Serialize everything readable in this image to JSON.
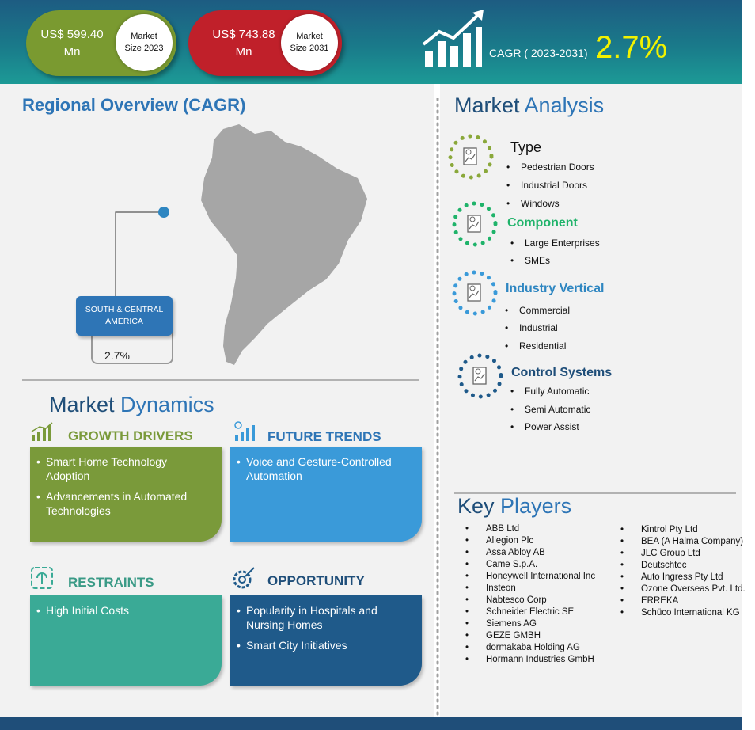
{
  "header": {
    "market_2023": {
      "value": "US$ 599.40\nMn",
      "value_line1": "US$ 599.40",
      "value_line2": "Mn",
      "label_line1": "Market",
      "label_line2": "Size 2023",
      "color": "#7a9a30"
    },
    "market_2031": {
      "value_line1": "US$ 743.88",
      "value_line2": "Mn",
      "label_line1": "Market",
      "label_line2": "Size 2031",
      "color": "#c0202a"
    },
    "cagr_label": "CAGR ( 2023-2031)",
    "cagr_value": "2.7%",
    "cagr_color": "#f2f200"
  },
  "regional": {
    "title": "Regional Overview (CAGR)",
    "region_line1": "SOUTH & CENTRAL",
    "region_line2": "AMERICA",
    "region_cagr": "2.7%",
    "map_color": "#a6a6a6",
    "box_color": "#2e75b6"
  },
  "dynamics": {
    "title_bold": "Market",
    "title_rest": "Dynamics",
    "growth": {
      "title": "GROWTH DRIVERS",
      "color": "#7a9a3a",
      "items": [
        "Smart Home Technology Adoption",
        "Advancements in Automated Technologies"
      ]
    },
    "trends": {
      "title": "FUTURE TRENDS",
      "color": "#3a9ad9",
      "items": [
        "Voice and Gesture-Controlled Automation"
      ]
    },
    "restraints": {
      "title": "RESTRAINTS",
      "color": "#3aaa96",
      "items": [
        "High Initial Costs"
      ]
    },
    "opportunity": {
      "title": "OPPORTUNITY",
      "color": "#1f5a8a",
      "items": [
        "Popularity in Hospitals and Nursing Homes",
        "Smart City Initiatives"
      ]
    }
  },
  "analysis": {
    "title_bold": "Market",
    "title_rest": "Analysis",
    "segments": [
      {
        "title": "Type",
        "color": "#111111",
        "dot_color": "#8aa83a",
        "items": [
          "Pedestrian Doors",
          "Industrial Doors",
          "Windows"
        ]
      },
      {
        "title": "Component",
        "color": "#1fb36a",
        "dot_color": "#1fb36a",
        "items": [
          "Large Enterprises",
          "SMEs"
        ]
      },
      {
        "title": "Industry Vertical",
        "color": "#2e86c1",
        "dot_color": "#3a9ad9",
        "items": [
          "Commercial",
          "Industrial",
          "Residential"
        ]
      },
      {
        "title": "Control Systems",
        "color": "#1f4e79",
        "dot_color": "#1f5a8a",
        "items": [
          "Fully Automatic",
          "Semi Automatic",
          "Power Assist"
        ]
      }
    ]
  },
  "key_players": {
    "title_bold": "Key",
    "title_rest": "Players",
    "col1": [
      "ABB Ltd",
      "Allegion Plc",
      "Assa Abloy AB",
      "Came S.p.A.",
      "Honeywell International Inc",
      "Insteon",
      "Nabtesco Corp",
      "Schneider Electric SE",
      "Siemens AG",
      "GEZE GMBH",
      "dormakaba Holding AG",
      "Hormann Industries GmbH"
    ],
    "col2": [
      "Kintrol Pty Ltd",
      "BEA (A Halma Company)",
      "JLC Group Ltd",
      "Deutschtec",
      "Auto Ingress Pty Ltd",
      "Ozone Overseas Pvt. Ltd.",
      "ERREKA",
      "Schüco International KG"
    ]
  }
}
